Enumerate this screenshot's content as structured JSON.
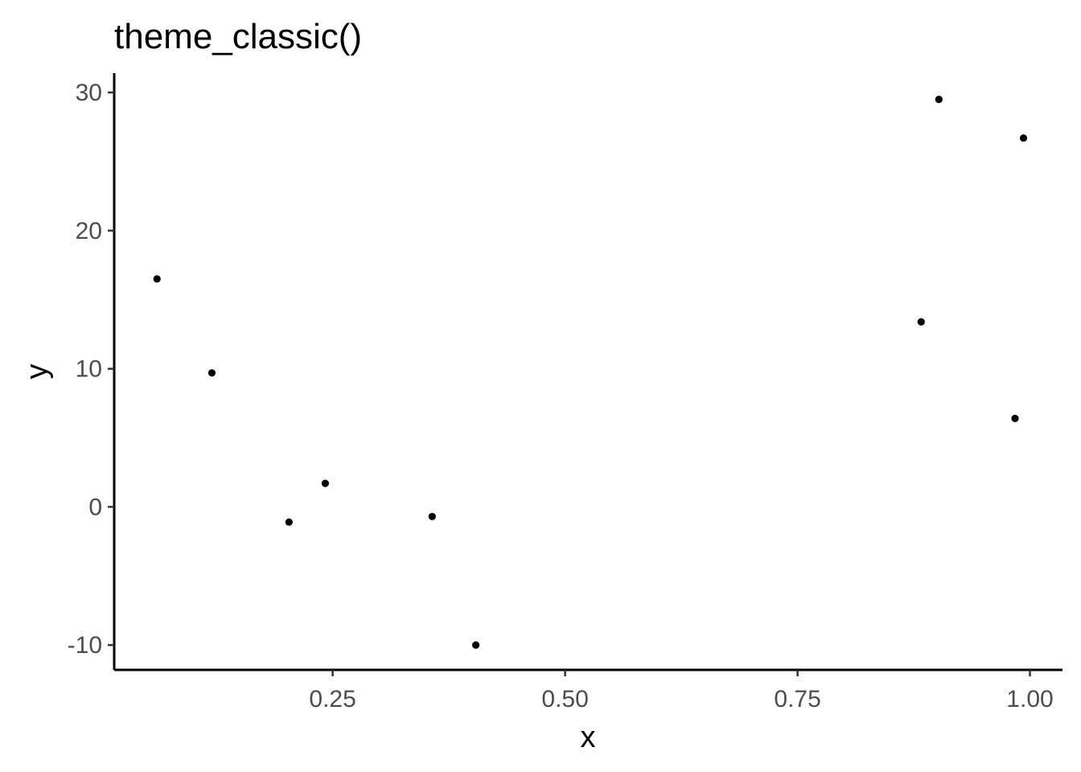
{
  "chart_data": {
    "type": "scatter",
    "title": "theme_classic()",
    "xlabel": "x",
    "ylabel": "y",
    "xlim": [
      0.015,
      1.035
    ],
    "ylim": [
      -11.8,
      31.4
    ],
    "x_ticks": [
      0.25,
      0.5,
      0.75,
      1.0
    ],
    "x_tick_labels": [
      "0.25",
      "0.50",
      "0.75",
      "1.00"
    ],
    "y_ticks": [
      -10,
      0,
      10,
      20,
      30
    ],
    "y_tick_labels": [
      "-10",
      "0",
      "10",
      "20",
      "30"
    ],
    "grid": false,
    "point_color": "#000000",
    "points": [
      {
        "x": 0.061,
        "y": 16.5
      },
      {
        "x": 0.12,
        "y": 9.7
      },
      {
        "x": 0.203,
        "y": -1.1
      },
      {
        "x": 0.242,
        "y": 1.7
      },
      {
        "x": 0.357,
        "y": -0.7
      },
      {
        "x": 0.404,
        "y": -10.0
      },
      {
        "x": 0.883,
        "y": 13.4
      },
      {
        "x": 0.902,
        "y": 29.5
      },
      {
        "x": 0.984,
        "y": 6.4
      },
      {
        "x": 0.993,
        "y": 26.7
      }
    ]
  }
}
